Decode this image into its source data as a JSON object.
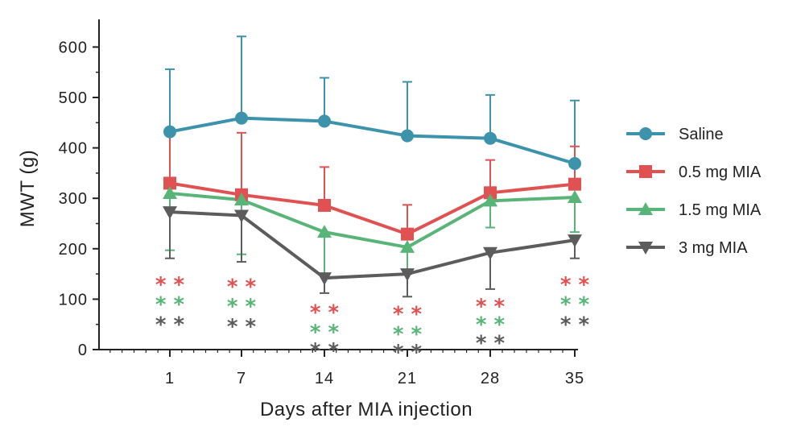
{
  "chart_data": {
    "type": "line",
    "xlabel": "Days after MIA injection",
    "ylabel": "MWT (g)",
    "x": [
      1,
      7,
      14,
      21,
      28,
      35
    ],
    "x_tick_labels": [
      "1",
      "7",
      "14",
      "21",
      "28",
      "35"
    ],
    "ylim": [
      0,
      650
    ],
    "y_ticks": [
      0,
      100,
      200,
      300,
      400,
      500,
      600
    ],
    "y_tick_labels": [
      "0",
      "100",
      "200",
      "300",
      "400",
      "500",
      "600"
    ],
    "grid": false,
    "legend_position": "right",
    "series": [
      {
        "name": "Saline",
        "color": "#3d93ab",
        "marker": "circle",
        "values": [
          432,
          459,
          453,
          424,
          419,
          369
        ],
        "error_upper": [
          556,
          621,
          539,
          531,
          505,
          494
        ],
        "error_lower": [
          432,
          459,
          453,
          424,
          419,
          369
        ]
      },
      {
        "name": "0.5 mg MIA",
        "color": "#e05252",
        "marker": "square",
        "values": [
          330,
          307,
          286,
          229,
          311,
          328
        ],
        "error_upper": [
          432,
          430,
          362,
          287,
          376,
          403
        ],
        "error_lower": [
          330,
          307,
          286,
          229,
          311,
          328
        ]
      },
      {
        "name": "1.5 mg MIA",
        "color": "#58b577",
        "marker": "triangle-up",
        "values": [
          310,
          297,
          233,
          203,
          295,
          302
        ],
        "error_upper": [
          310,
          297,
          233,
          203,
          295,
          302
        ],
        "error_lower": [
          197,
          189,
          150,
          150,
          242,
          233
        ]
      },
      {
        "name": "3 mg MIA",
        "color": "#5c5c5c",
        "marker": "triangle-down",
        "values": [
          273,
          266,
          142,
          150,
          192,
          217
        ],
        "error_upper": [
          273,
          266,
          142,
          150,
          192,
          217
        ],
        "error_lower": [
          181,
          174,
          112,
          105,
          120,
          181
        ]
      }
    ],
    "annotations": [
      {
        "x": 1,
        "rows": [
          {
            "text": "* *",
            "series": 1,
            "y": 131
          },
          {
            "text": "* *",
            "series": 2,
            "y": 92
          },
          {
            "text": "* *",
            "series": 3,
            "y": 52
          }
        ]
      },
      {
        "x": 7,
        "rows": [
          {
            "text": "* *",
            "series": 1,
            "y": 127
          },
          {
            "text": "* *",
            "series": 2,
            "y": 88
          },
          {
            "text": "* *",
            "series": 3,
            "y": 48
          }
        ]
      },
      {
        "x": 14,
        "rows": [
          {
            "text": "* *",
            "series": 1,
            "y": 76
          },
          {
            "text": "* *",
            "series": 2,
            "y": 37
          },
          {
            "text": "* *",
            "series": 3,
            "y": 0
          }
        ]
      },
      {
        "x": 21,
        "rows": [
          {
            "text": "* *",
            "series": 1,
            "y": 73
          },
          {
            "text": "* *",
            "series": 2,
            "y": 33
          },
          {
            "text": "* *",
            "series": 3,
            "y": -3
          }
        ]
      },
      {
        "x": 28,
        "rows": [
          {
            "text": "* *",
            "series": 1,
            "y": 88
          },
          {
            "text": "* *",
            "series": 2,
            "y": 52
          },
          {
            "text": "* *",
            "series": 3,
            "y": 15
          }
        ]
      },
      {
        "x": 35,
        "rows": [
          {
            "text": "* *",
            "series": 1,
            "y": 131
          },
          {
            "text": "* *",
            "series": 2,
            "y": 92
          },
          {
            "text": "* *",
            "series": 3,
            "y": 52
          }
        ]
      }
    ]
  }
}
